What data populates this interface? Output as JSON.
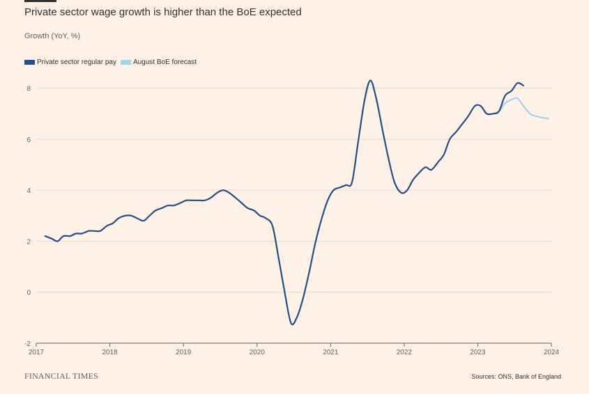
{
  "chart_data": {
    "type": "line",
    "title": "Private sector wage growth is higher than the BoE expected",
    "subtitle": "Growth (YoY, %)",
    "xlabel": "",
    "ylabel": "",
    "xlim": [
      2017,
      2024
    ],
    "ylim": [
      -2,
      9
    ],
    "yticks": [
      "-2",
      "0",
      "2",
      "4",
      "6",
      "8"
    ],
    "xticks": [
      "2017",
      "2018",
      "2019",
      "2020",
      "2021",
      "2022",
      "2023",
      "2024"
    ],
    "grid": true,
    "legend_position": "top-left",
    "series": [
      {
        "name": "Private sector regular pay",
        "color": "#1f4e8c",
        "points": [
          [
            2017.12,
            2.2
          ],
          [
            2017.21,
            2.1
          ],
          [
            2017.29,
            2.0
          ],
          [
            2017.37,
            2.2
          ],
          [
            2017.46,
            2.2
          ],
          [
            2017.54,
            2.3
          ],
          [
            2017.62,
            2.3
          ],
          [
            2017.71,
            2.4
          ],
          [
            2017.79,
            2.4
          ],
          [
            2017.87,
            2.4
          ],
          [
            2017.96,
            2.6
          ],
          [
            2018.04,
            2.7
          ],
          [
            2018.12,
            2.9
          ],
          [
            2018.21,
            3.0
          ],
          [
            2018.29,
            3.0
          ],
          [
            2018.37,
            2.9
          ],
          [
            2018.46,
            2.8
          ],
          [
            2018.54,
            3.0
          ],
          [
            2018.62,
            3.2
          ],
          [
            2018.71,
            3.3
          ],
          [
            2018.79,
            3.4
          ],
          [
            2018.87,
            3.4
          ],
          [
            2018.96,
            3.5
          ],
          [
            2019.04,
            3.6
          ],
          [
            2019.12,
            3.6
          ],
          [
            2019.21,
            3.6
          ],
          [
            2019.29,
            3.6
          ],
          [
            2019.37,
            3.7
          ],
          [
            2019.46,
            3.9
          ],
          [
            2019.54,
            4.0
          ],
          [
            2019.62,
            3.9
          ],
          [
            2019.71,
            3.7
          ],
          [
            2019.79,
            3.5
          ],
          [
            2019.87,
            3.3
          ],
          [
            2019.96,
            3.2
          ],
          [
            2020.04,
            3.0
          ],
          [
            2020.12,
            2.9
          ],
          [
            2020.21,
            2.6
          ],
          [
            2020.29,
            1.4
          ],
          [
            2020.37,
            0.1
          ],
          [
            2020.46,
            -1.2
          ],
          [
            2020.54,
            -1.0
          ],
          [
            2020.62,
            -0.3
          ],
          [
            2020.71,
            0.8
          ],
          [
            2020.79,
            1.9
          ],
          [
            2020.87,
            2.8
          ],
          [
            2020.96,
            3.6
          ],
          [
            2021.04,
            4.0
          ],
          [
            2021.12,
            4.1
          ],
          [
            2021.21,
            4.2
          ],
          [
            2021.29,
            4.3
          ],
          [
            2021.37,
            5.8
          ],
          [
            2021.46,
            7.5
          ],
          [
            2021.54,
            8.3
          ],
          [
            2021.62,
            7.6
          ],
          [
            2021.71,
            6.3
          ],
          [
            2021.79,
            5.2
          ],
          [
            2021.87,
            4.3
          ],
          [
            2021.96,
            3.9
          ],
          [
            2022.04,
            4.0
          ],
          [
            2022.12,
            4.4
          ],
          [
            2022.21,
            4.7
          ],
          [
            2022.29,
            4.9
          ],
          [
            2022.37,
            4.8
          ],
          [
            2022.46,
            5.1
          ],
          [
            2022.54,
            5.4
          ],
          [
            2022.62,
            6.0
          ],
          [
            2022.71,
            6.3
          ],
          [
            2022.79,
            6.6
          ],
          [
            2022.87,
            6.9
          ],
          [
            2022.96,
            7.3
          ],
          [
            2023.04,
            7.3
          ],
          [
            2023.12,
            7.0
          ],
          [
            2023.21,
            7.0
          ],
          [
            2023.29,
            7.1
          ],
          [
            2023.37,
            7.7
          ],
          [
            2023.46,
            7.9
          ],
          [
            2023.54,
            8.2
          ],
          [
            2023.62,
            8.1
          ]
        ]
      },
      {
        "name": "August BoE forecast",
        "color": "#a3d5e9",
        "points": [
          [
            2023.21,
            7.0
          ],
          [
            2023.29,
            7.1
          ],
          [
            2023.37,
            7.4
          ],
          [
            2023.46,
            7.55
          ],
          [
            2023.54,
            7.6
          ],
          [
            2023.62,
            7.3
          ],
          [
            2023.71,
            7.0
          ],
          [
            2023.79,
            6.9
          ],
          [
            2023.87,
            6.85
          ],
          [
            2023.96,
            6.8
          ]
        ]
      }
    ]
  },
  "footer": {
    "brand": "FINANCIAL TIMES",
    "source": "Sources: ONS, Bank of England"
  }
}
